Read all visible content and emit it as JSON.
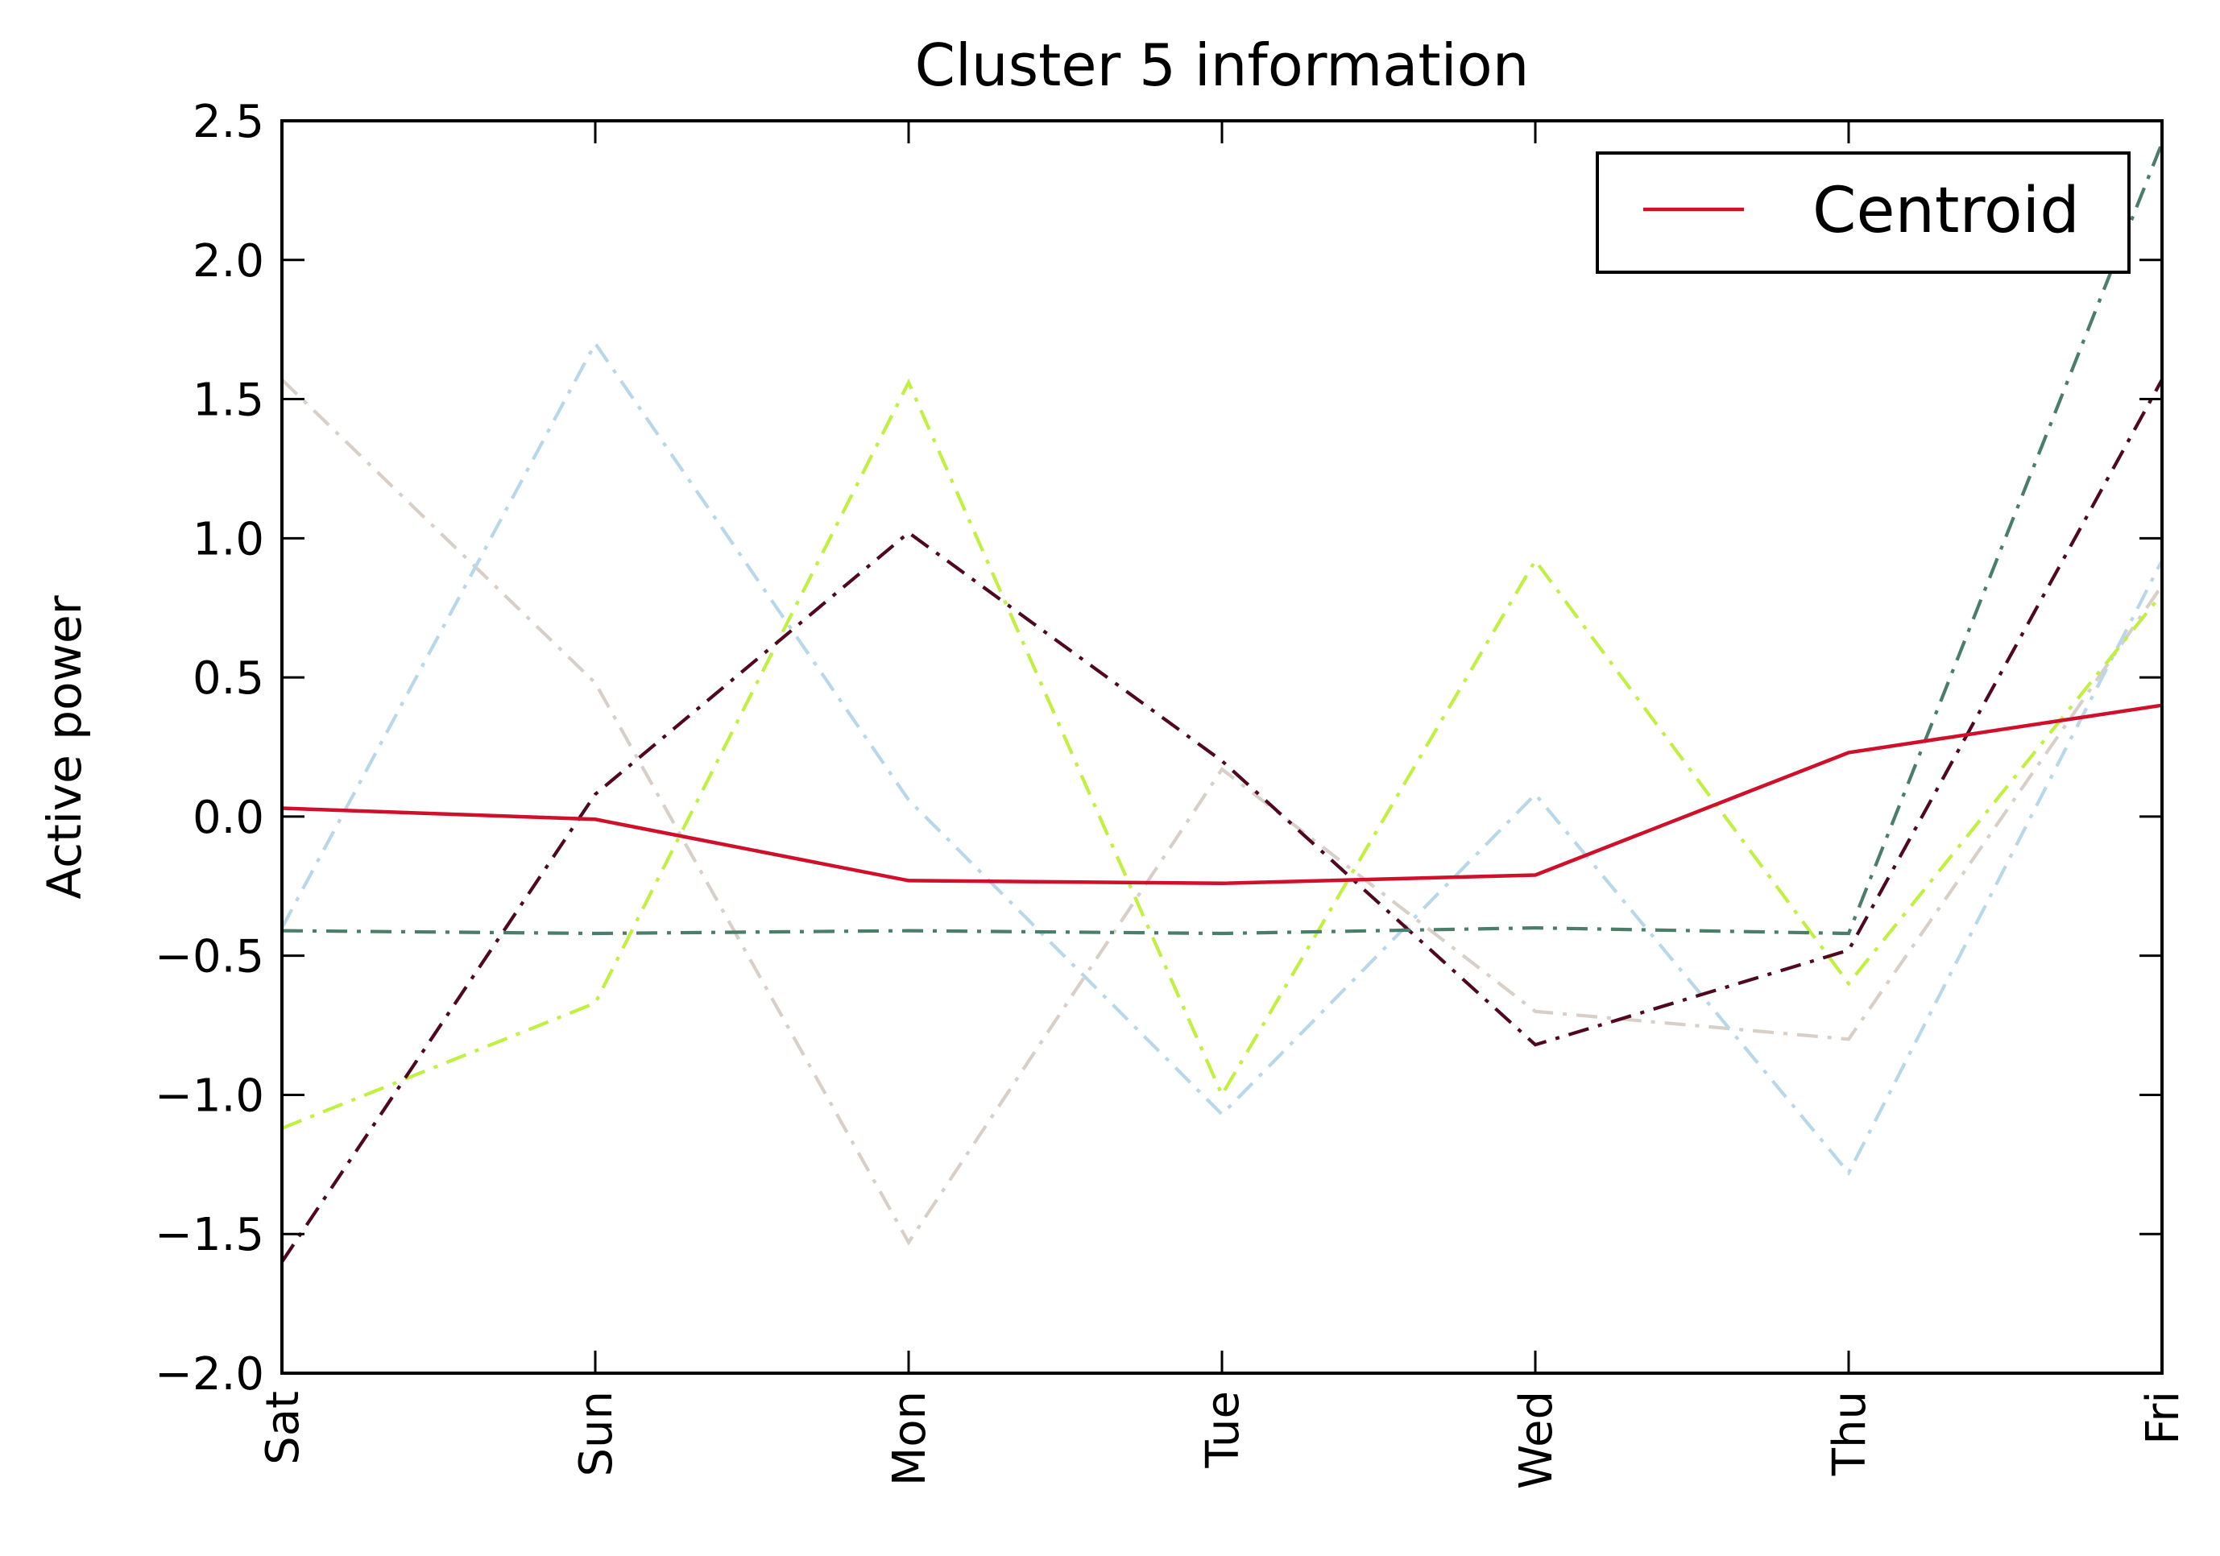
{
  "chart_data": {
    "type": "line",
    "title": "Cluster 5 information",
    "xlabel": "",
    "ylabel": "Active power",
    "categories": [
      "Sat",
      "Sun",
      "Mon",
      "Tue",
      "Wed",
      "Thu",
      "Fri"
    ],
    "ylim": [
      -2.0,
      2.5
    ],
    "yticks": [
      2.5,
      2.0,
      1.5,
      1.0,
      0.5,
      0.0,
      -0.5,
      -1.0,
      -1.5,
      -2.0
    ],
    "ytick_labels": [
      "2.5",
      "2.0",
      "1.5",
      "1.0",
      "0.5",
      "0.0",
      "−0.5",
      "−1.0",
      "−1.5",
      "−2.0"
    ],
    "grid": false,
    "legend_position": "top-right",
    "series": [
      {
        "color": "#d8d0c8",
        "style": "dashdot",
        "values": [
          1.57,
          0.48,
          -1.53,
          0.17,
          -0.7,
          -0.8,
          0.83
        ]
      },
      {
        "color": "#b8d8ea",
        "style": "dashdot",
        "values": [
          -0.4,
          1.7,
          0.06,
          -1.07,
          0.08,
          -1.28,
          0.92
        ]
      },
      {
        "color": "#c0f040",
        "style": "dashdot",
        "values": [
          -1.12,
          -0.67,
          1.56,
          -1.0,
          0.92,
          -0.6,
          0.8
        ]
      },
      {
        "color": "#500820",
        "style": "dashdot",
        "values": [
          -1.6,
          0.08,
          1.02,
          0.2,
          -0.82,
          -0.48,
          1.57
        ]
      },
      {
        "color": "#4a7e6a",
        "style": "dashdot",
        "values": [
          -0.41,
          -0.42,
          -0.41,
          -0.42,
          -0.4,
          -0.42,
          2.42
        ]
      },
      {
        "name": "Centroid",
        "color": "#d0102a",
        "style": "solid",
        "values": [
          0.03,
          -0.01,
          -0.23,
          -0.24,
          -0.21,
          0.23,
          0.4
        ]
      }
    ]
  }
}
